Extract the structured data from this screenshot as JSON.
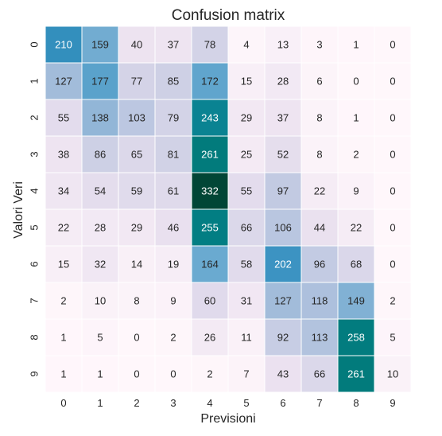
{
  "chart_data": {
    "type": "heatmap",
    "title": "Confusion matrix",
    "xlabel": "Previsioni",
    "ylabel": "Valori Veri",
    "x_ticks": [
      "0",
      "1",
      "2",
      "3",
      "4",
      "5",
      "6",
      "7",
      "8",
      "9"
    ],
    "y_ticks": [
      "0",
      "1",
      "2",
      "3",
      "4",
      "5",
      "6",
      "7",
      "8",
      "9"
    ],
    "colormap": "PuBuGn",
    "value_range": [
      0,
      332
    ],
    "colorbar": false,
    "grid": false,
    "values": [
      [
        210,
        159,
        40,
        37,
        78,
        4,
        13,
        3,
        1,
        0
      ],
      [
        127,
        177,
        77,
        85,
        172,
        15,
        28,
        6,
        0,
        0
      ],
      [
        55,
        138,
        103,
        79,
        243,
        29,
        37,
        8,
        1,
        0
      ],
      [
        38,
        86,
        65,
        81,
        261,
        25,
        52,
        8,
        2,
        0
      ],
      [
        34,
        54,
        59,
        61,
        332,
        55,
        97,
        22,
        9,
        0
      ],
      [
        22,
        28,
        29,
        46,
        255,
        66,
        106,
        44,
        22,
        0
      ],
      [
        15,
        32,
        14,
        19,
        164,
        58,
        202,
        96,
        68,
        0
      ],
      [
        2,
        10,
        8,
        9,
        60,
        31,
        127,
        118,
        149,
        2
      ],
      [
        1,
        5,
        0,
        2,
        26,
        11,
        92,
        113,
        258,
        5
      ],
      [
        1,
        1,
        0,
        0,
        2,
        7,
        43,
        66,
        261,
        10
      ]
    ]
  }
}
